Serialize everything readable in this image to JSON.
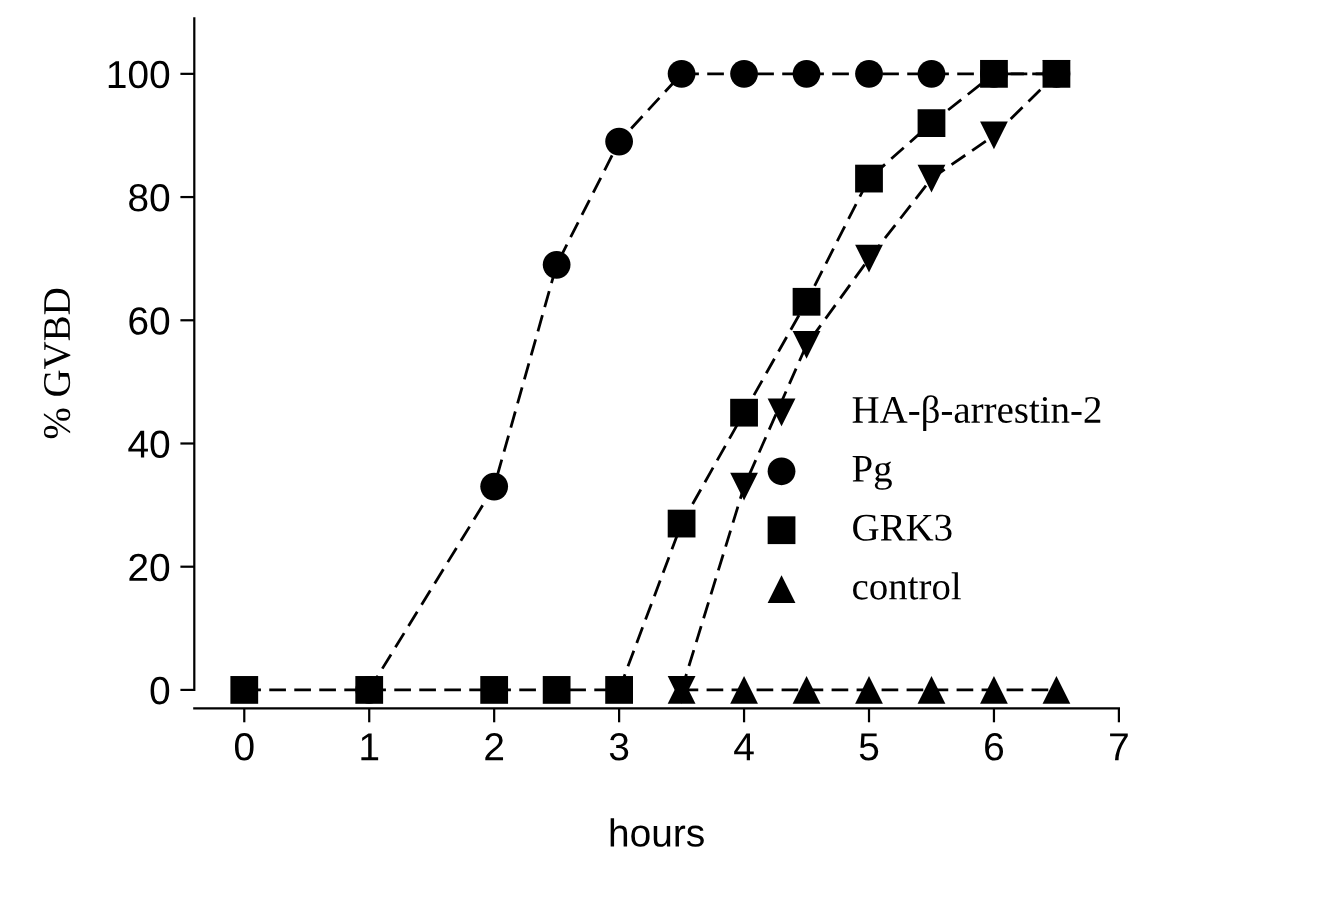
{
  "chart_data": {
    "type": "line",
    "xlabel": "hours",
    "ylabel": "% GVBD",
    "x": [
      0,
      1,
      2,
      2.5,
      3,
      3.5,
      4,
      4.5,
      5,
      5.5,
      6,
      6.5
    ],
    "series": [
      {
        "name": "HA-β-arrestin-2",
        "color": "#000000",
        "marker": "triangle_down",
        "values": [
          null,
          null,
          null,
          null,
          null,
          0,
          33,
          56,
          70,
          83,
          90,
          100
        ]
      },
      {
        "name": "Pg",
        "color": "#000000",
        "marker": "circle",
        "values": [
          null,
          0,
          33,
          69,
          89,
          100,
          100,
          100,
          100,
          100,
          100,
          100
        ]
      },
      {
        "name": "GRK3",
        "color": "#000000",
        "marker": "square",
        "values": [
          0,
          0,
          0,
          0,
          0,
          27,
          45,
          63,
          83,
          92,
          100,
          100
        ]
      },
      {
        "name": "control",
        "color": "#000000",
        "marker": "triangle",
        "values": [
          null,
          null,
          null,
          null,
          null,
          0,
          0,
          0,
          0,
          0,
          0,
          0
        ]
      }
    ],
    "xlim": [
      -0.4,
      7
    ],
    "xticks": [
      0,
      1,
      2,
      3,
      4,
      5,
      6,
      7
    ],
    "ylim": [
      -3,
      109
    ],
    "yticks": [
      0,
      20,
      40,
      60,
      80,
      100
    ],
    "line_style": "dashed",
    "grid": false,
    "legend": "right"
  }
}
